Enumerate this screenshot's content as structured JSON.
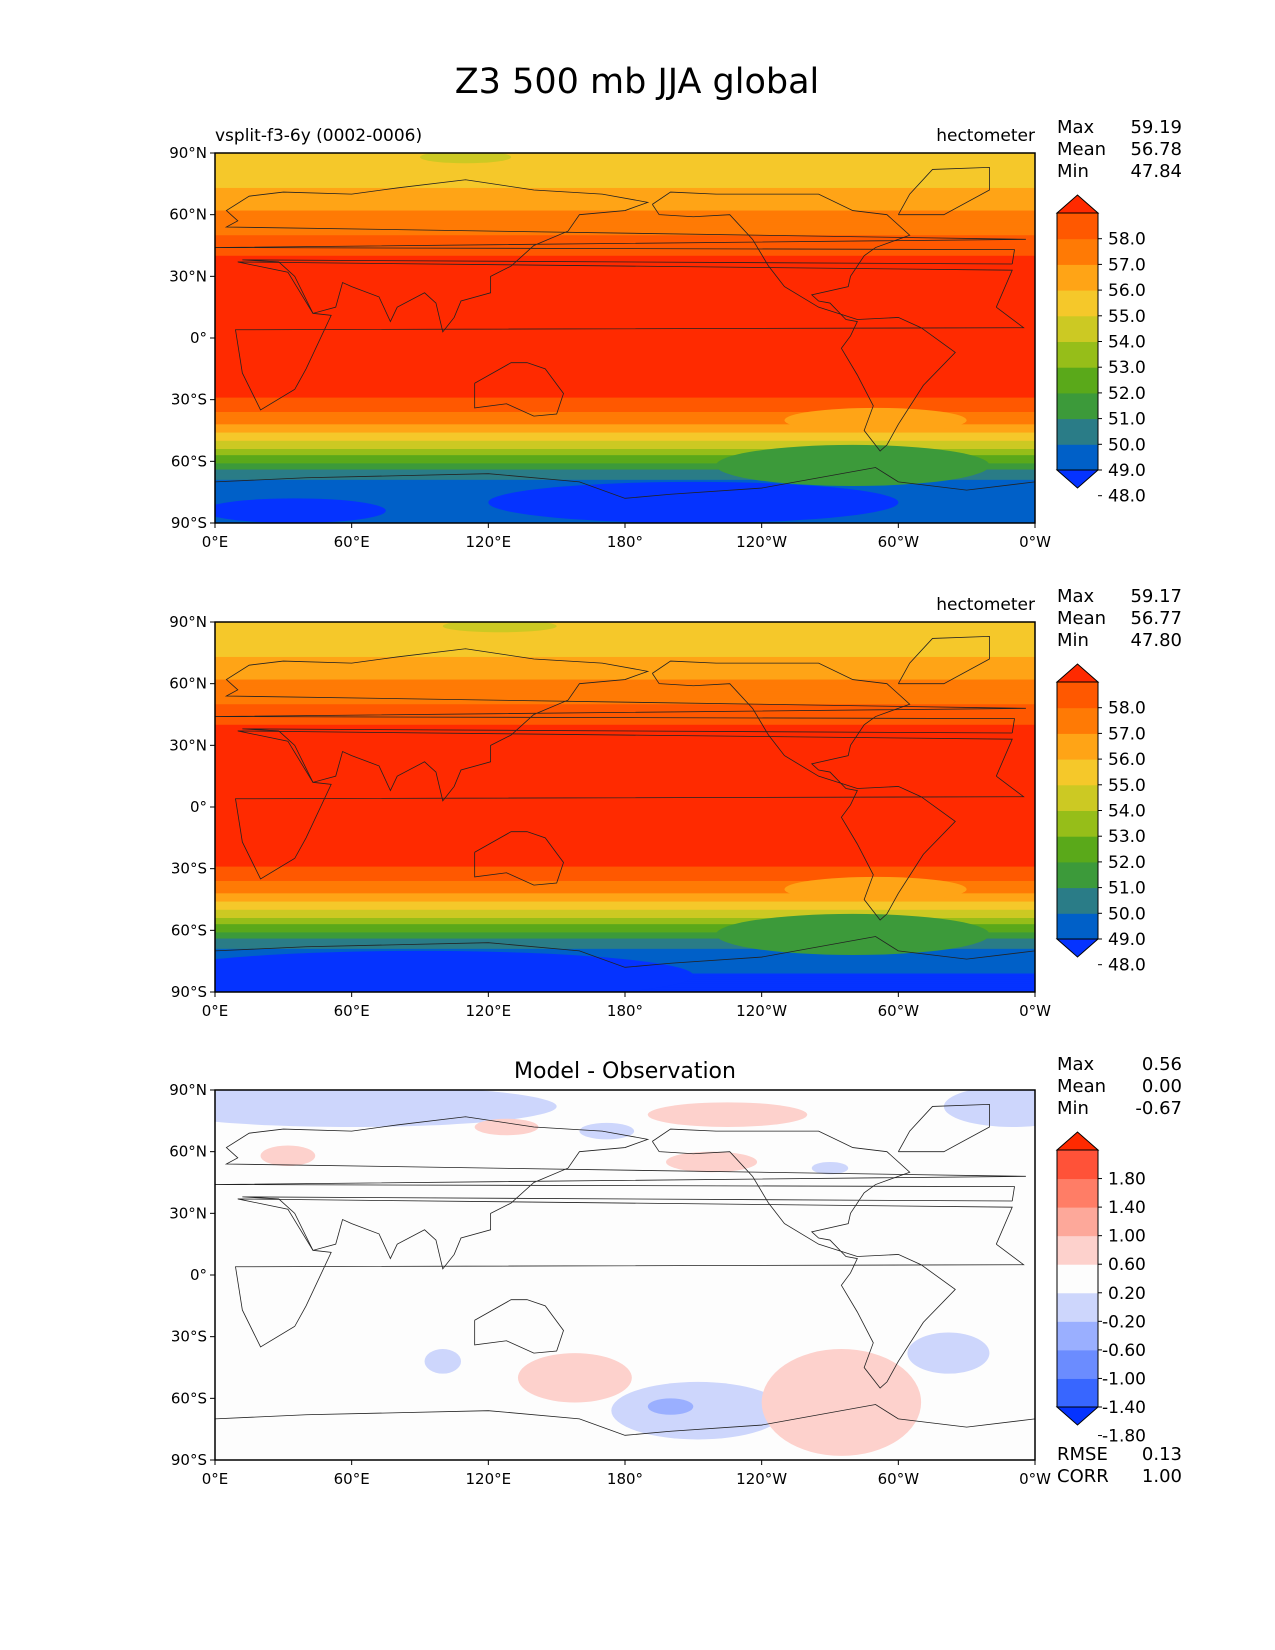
{
  "title": "Z3 500 mb JJA global",
  "panels": [
    {
      "left_label": "vsplit-f3-6y (0002-0006)",
      "center_label": "",
      "right_label": "hectometer",
      "stats": [
        {
          "name": "Max",
          "value": "59.19"
        },
        {
          "name": "Mean",
          "value": "56.78"
        },
        {
          "name": "Min",
          "value": "47.84"
        }
      ],
      "colorbar_labels": [
        "58.0",
        "57.0",
        "56.0",
        "55.0",
        "54.0",
        "53.0",
        "52.0",
        "51.0",
        "50.0",
        "49.0",
        "48.0"
      ],
      "bottom_stats": []
    },
    {
      "left_label": "",
      "center_label": "",
      "right_label": "hectometer",
      "stats": [
        {
          "name": "Max",
          "value": "59.17"
        },
        {
          "name": "Mean",
          "value": "56.77"
        },
        {
          "name": "Min",
          "value": "47.80"
        }
      ],
      "colorbar_labels": [
        "58.0",
        "57.0",
        "56.0",
        "55.0",
        "54.0",
        "53.0",
        "52.0",
        "51.0",
        "50.0",
        "49.0",
        "48.0"
      ],
      "bottom_stats": []
    },
    {
      "left_label": "",
      "center_label": "Model - Observation",
      "right_label": "",
      "stats": [
        {
          "name": "Max",
          "value": "0.56"
        },
        {
          "name": "Mean",
          "value": "0.00"
        },
        {
          "name": "Min",
          "value": "-0.67"
        }
      ],
      "colorbar_labels": [
        "1.80",
        "1.40",
        "1.00",
        "0.60",
        "0.20",
        "-0.20",
        "-0.60",
        "-1.00",
        "-1.40",
        "-1.80"
      ],
      "bottom_stats": [
        {
          "name": "RMSE",
          "value": "0.13"
        },
        {
          "name": "CORR",
          "value": "1.00"
        }
      ]
    }
  ],
  "chart_data": [
    {
      "type": "heatmap",
      "title": "vsplit-f3-6y (0002-0006)",
      "units": "hectometer",
      "x_ticks": [
        "0°E",
        "60°E",
        "120°E",
        "180°",
        "120°W",
        "60°W",
        "0°W"
      ],
      "y_ticks": [
        "90°N",
        "60°N",
        "30°N",
        "0°",
        "30°S",
        "60°S",
        "90°S"
      ],
      "levels": [
        48.0,
        49.0,
        50.0,
        51.0,
        52.0,
        53.0,
        54.0,
        55.0,
        56.0,
        57.0,
        58.0
      ],
      "colors": [
        "#0533ff",
        "#0060c8",
        "#2a7c87",
        "#3c9a3a",
        "#5aa91a",
        "#96be19",
        "#ccc923",
        "#f5c82a",
        "#ffa416",
        "#ff7a05",
        "#ff5800",
        "#ff2a00"
      ],
      "colorbar_extend": "both",
      "max": 59.19,
      "mean": 56.78,
      "min": 47.84
    },
    {
      "type": "heatmap",
      "title": "",
      "units": "hectometer",
      "x_ticks": [
        "0°E",
        "60°E",
        "120°E",
        "180°",
        "120°W",
        "60°W",
        "0°W"
      ],
      "y_ticks": [
        "90°N",
        "60°N",
        "30°N",
        "0°",
        "30°S",
        "60°S",
        "90°S"
      ],
      "levels": [
        48.0,
        49.0,
        50.0,
        51.0,
        52.0,
        53.0,
        54.0,
        55.0,
        56.0,
        57.0,
        58.0
      ],
      "colors": [
        "#0533ff",
        "#0060c8",
        "#2a7c87",
        "#3c9a3a",
        "#5aa91a",
        "#96be19",
        "#ccc923",
        "#f5c82a",
        "#ffa416",
        "#ff7a05",
        "#ff5800",
        "#ff2a00"
      ],
      "colorbar_extend": "both",
      "max": 59.17,
      "mean": 56.77,
      "min": 47.8
    },
    {
      "type": "heatmap",
      "title": "Model - Observation",
      "units": "",
      "x_ticks": [
        "0°E",
        "60°E",
        "120°E",
        "180°",
        "120°W",
        "60°W",
        "0°W"
      ],
      "y_ticks": [
        "90°N",
        "60°N",
        "30°N",
        "0°",
        "30°S",
        "60°S",
        "90°S"
      ],
      "levels": [
        -1.8,
        -1.4,
        -1.0,
        -0.6,
        -0.2,
        0.2,
        0.6,
        1.0,
        1.4,
        1.8
      ],
      "colors": [
        "#0533ff",
        "#3866ff",
        "#6b8cff",
        "#9aafff",
        "#cdd6fc",
        "#fdfdfd",
        "#fdd1cc",
        "#fda89a",
        "#ff7d66",
        "#ff5238",
        "#ff2a00"
      ],
      "colorbar_extend": "both",
      "max": 0.56,
      "mean": 0.0,
      "min": -0.67,
      "rmse": 0.13,
      "corr": 1.0
    }
  ]
}
